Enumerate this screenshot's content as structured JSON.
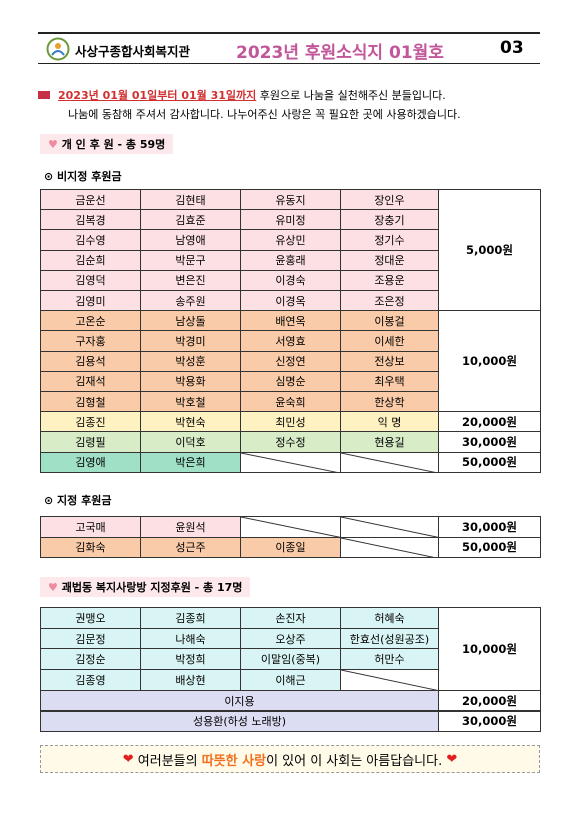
{
  "header": {
    "org": "사상구종합사회복지관",
    "title": "2023년 후원소식지 01월호",
    "page": "03"
  },
  "intro": {
    "period": "2023년 01월 01일부터 01월 31일까지",
    "line1_rest": "후원으로 나눔을 실천해주신 분들입니다.",
    "line2": "나눔에 동참해 주셔서 감사합니다. 나누어주신 사랑은 꼭 필요한 곳에 사용하겠습니다."
  },
  "individual": {
    "badge": "개 인 후 원 - 총 59명",
    "undesignated": {
      "heading": "비지정 후원금",
      "groups": [
        {
          "color": "#fde0e4",
          "amount": "5,000원",
          "rows": [
            [
              "금운선",
              "김현태",
              "유동지",
              "장인우"
            ],
            [
              "김복경",
              "김효준",
              "유미정",
              "장충기"
            ],
            [
              "김수영",
              "남영애",
              "유상민",
              "정기수"
            ],
            [
              "김순희",
              "박문구",
              "윤홍래",
              "정대운"
            ],
            [
              "김영덕",
              "변은진",
              "이경숙",
              "조용운"
            ],
            [
              "김영미",
              "송주원",
              "이경옥",
              "조은정"
            ]
          ]
        },
        {
          "color": "#f9cba8",
          "amount": "10,000원",
          "rows": [
            [
              "고온순",
              "남상돌",
              "배연옥",
              "이봉걸"
            ],
            [
              "구자홍",
              "박경미",
              "서영효",
              "이세한"
            ],
            [
              "김용석",
              "박성훈",
              "신정연",
              "전상보"
            ],
            [
              "김재석",
              "박용화",
              "심명순",
              "최우택"
            ],
            [
              "김형철",
              "박호철",
              "윤숙희",
              "한상학"
            ]
          ]
        },
        {
          "color": "#fff2c2",
          "amount": "20,000원",
          "rows": [
            [
              "김종진",
              "박현숙",
              "최민성",
              "익  명"
            ]
          ]
        },
        {
          "color": "#d8ecc8",
          "amount": "30,000원",
          "rows": [
            [
              "김령필",
              "이덕호",
              "정수정",
              "현용길"
            ]
          ]
        },
        {
          "color": "#9fe0c7",
          "amount": "50,000원",
          "rows": [
            [
              "김영애",
              "박은희"
            ]
          ]
        }
      ]
    },
    "designated": {
      "heading": "지정 후원금",
      "groups": [
        {
          "color": "#fde0e4",
          "amount": "30,000원",
          "rows": [
            [
              "고국매",
              "윤원석"
            ]
          ]
        },
        {
          "color": "#f9cba8",
          "amount": "50,000원",
          "rows": [
            [
              "김화숙",
              "성근주",
              "이종일"
            ]
          ]
        }
      ]
    }
  },
  "sarangbang": {
    "badge": "괘법동 복지사랑방 지정후원 - 총 17명",
    "groups": [
      {
        "color": "#d9f4f4",
        "amount": "10,000원",
        "rows": [
          [
            "권맹오",
            "김종희",
            "손진자",
            "허혜숙"
          ],
          [
            "김문정",
            "나해숙",
            "오상주",
            "한효선(성원공조)"
          ],
          [
            "김정순",
            "박정희",
            "이말임(중복)",
            "허만수"
          ],
          [
            "김종영",
            "배상현",
            "이해근"
          ]
        ]
      }
    ],
    "wide_rows": [
      {
        "color": "#dcdcf2",
        "name": "이지용",
        "amount": "20,000원"
      },
      {
        "color": "#dcdcf2",
        "name": "성용환(하성 노래방)",
        "amount": "30,000원"
      }
    ]
  },
  "footer": {
    "before": "여러분들의",
    "highlight": "따뜻한 사랑",
    "after": "이 있어 이 사회는 아름답습니다."
  }
}
